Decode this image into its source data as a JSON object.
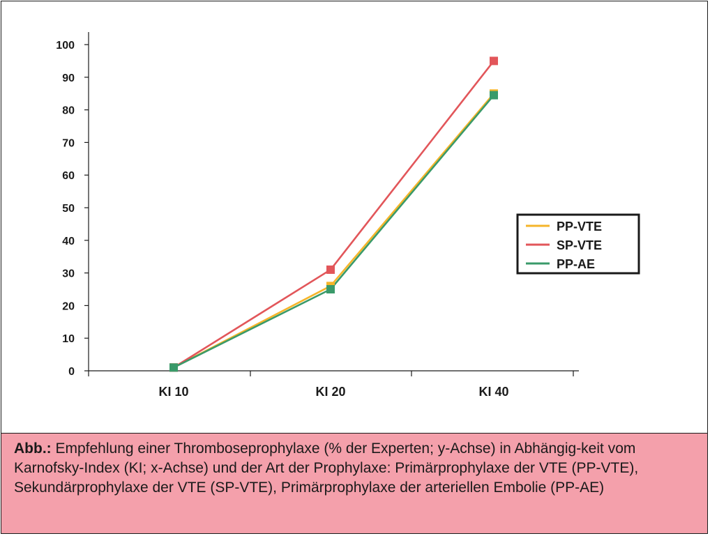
{
  "chart_data": {
    "type": "line",
    "categories": [
      "KI 10",
      "KI 20",
      "KI 40"
    ],
    "series": [
      {
        "name": "PP-VTE",
        "color": "#f5b52a",
        "values": [
          1,
          26,
          85
        ]
      },
      {
        "name": "SP-VTE",
        "color": "#e2565a",
        "values": [
          1,
          31,
          95
        ]
      },
      {
        "name": "PP-AE",
        "color": "#3a9a6a",
        "values": [
          1,
          25,
          84.5
        ]
      }
    ],
    "ylim": [
      0,
      100
    ],
    "yticks": [
      "0",
      "10",
      "20",
      "30",
      "40",
      "50",
      "60",
      "70",
      "80",
      "90",
      "100"
    ],
    "grid": false,
    "legend_position": "right"
  },
  "caption": {
    "lead": "Abb.:",
    "text": " Empfehlung einer Thromboseprophylaxe (% der Experten; y-Achse) in Abhängig-keit vom Karnofsky-Index (KI; x-Achse) und der Art der Prophylaxe: Primärprophylaxe der VTE (PP-VTE), Sekundärprophylaxe der VTE (SP-VTE), Primärprophylaxe der arteriellen Embolie (PP-AE)"
  }
}
